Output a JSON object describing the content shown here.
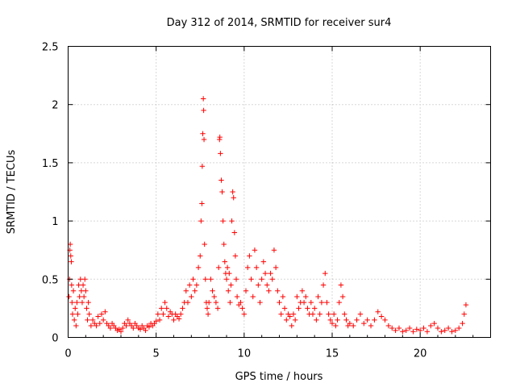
{
  "chart_data": {
    "type": "scatter",
    "title": "Day 312 of 2014, SRMTID for receiver sur4",
    "xlabel": "GPS time / hours",
    "ylabel": "SRMTID / TECUs",
    "xlim": [
      0,
      24
    ],
    "ylim": [
      0,
      2.5
    ],
    "grid": true,
    "marker": "+",
    "color": "#ff0000",
    "x_ticks": [
      0,
      5,
      10,
      15,
      20
    ],
    "x_tick_labels": [
      "0",
      "5",
      "10",
      "15",
      "20"
    ],
    "y_ticks": [
      0,
      0.5,
      1,
      1.5,
      2,
      2.5
    ],
    "y_tick_labels": [
      "0",
      "0.5",
      "1",
      "1.5",
      "2",
      "2.5"
    ],
    "series": [
      {
        "name": "sur4",
        "points": [
          [
            0.05,
            0.35
          ],
          [
            0.08,
            0.5
          ],
          [
            0.1,
            0.75
          ],
          [
            0.12,
            0.8
          ],
          [
            0.15,
            0.7
          ],
          [
            0.18,
            0.65
          ],
          [
            0.2,
            0.45
          ],
          [
            0.22,
            0.3
          ],
          [
            0.25,
            0.2
          ],
          [
            0.3,
            0.4
          ],
          [
            0.35,
            0.15
          ],
          [
            0.4,
            0.25
          ],
          [
            0.45,
            0.1
          ],
          [
            0.5,
            0.3
          ],
          [
            0.55,
            0.2
          ],
          [
            0.6,
            0.45
          ],
          [
            0.65,
            0.35
          ],
          [
            0.7,
            0.5
          ],
          [
            0.75,
            0.4
          ],
          [
            0.8,
            0.3
          ],
          [
            0.85,
            0.45
          ],
          [
            0.9,
            0.35
          ],
          [
            0.95,
            0.5
          ],
          [
            1.0,
            0.4
          ],
          [
            1.05,
            0.25
          ],
          [
            1.1,
            0.15
          ],
          [
            1.15,
            0.3
          ],
          [
            1.2,
            0.2
          ],
          [
            1.3,
            0.1
          ],
          [
            1.4,
            0.15
          ],
          [
            1.5,
            0.12
          ],
          [
            1.6,
            0.1
          ],
          [
            1.7,
            0.18
          ],
          [
            1.8,
            0.12
          ],
          [
            1.9,
            0.2
          ],
          [
            2.0,
            0.15
          ],
          [
            2.1,
            0.22
          ],
          [
            2.2,
            0.12
          ],
          [
            2.3,
            0.1
          ],
          [
            2.4,
            0.08
          ],
          [
            2.5,
            0.12
          ],
          [
            2.6,
            0.1
          ],
          [
            2.7,
            0.08
          ],
          [
            2.8,
            0.06
          ],
          [
            2.9,
            0.07
          ],
          [
            3.0,
            0.05
          ],
          [
            3.1,
            0.08
          ],
          [
            3.2,
            0.12
          ],
          [
            3.3,
            0.1
          ],
          [
            3.4,
            0.15
          ],
          [
            3.5,
            0.12
          ],
          [
            3.6,
            0.1
          ],
          [
            3.7,
            0.08
          ],
          [
            3.8,
            0.12
          ],
          [
            3.9,
            0.1
          ],
          [
            4.0,
            0.08
          ],
          [
            4.1,
            0.07
          ],
          [
            4.2,
            0.1
          ],
          [
            4.3,
            0.08
          ],
          [
            4.4,
            0.06
          ],
          [
            4.5,
            0.1
          ],
          [
            4.6,
            0.09
          ],
          [
            4.7,
            0.12
          ],
          [
            4.8,
            0.1
          ],
          [
            4.9,
            0.12
          ],
          [
            5.0,
            0.14
          ],
          [
            5.1,
            0.2
          ],
          [
            5.2,
            0.15
          ],
          [
            5.3,
            0.25
          ],
          [
            5.4,
            0.2
          ],
          [
            5.5,
            0.3
          ],
          [
            5.6,
            0.25
          ],
          [
            5.7,
            0.18
          ],
          [
            5.8,
            0.22
          ],
          [
            5.9,
            0.2
          ],
          [
            6.0,
            0.15
          ],
          [
            6.1,
            0.2
          ],
          [
            6.2,
            0.18
          ],
          [
            6.3,
            0.16
          ],
          [
            6.4,
            0.2
          ],
          [
            6.5,
            0.25
          ],
          [
            6.6,
            0.3
          ],
          [
            6.7,
            0.4
          ],
          [
            6.8,
            0.3
          ],
          [
            6.9,
            0.45
          ],
          [
            7.0,
            0.35
          ],
          [
            7.1,
            0.5
          ],
          [
            7.2,
            0.4
          ],
          [
            7.3,
            0.45
          ],
          [
            7.4,
            0.6
          ],
          [
            7.5,
            0.7
          ],
          [
            7.55,
            1.0
          ],
          [
            7.6,
            1.15
          ],
          [
            7.62,
            1.47
          ],
          [
            7.65,
            1.75
          ],
          [
            7.68,
            2.05
          ],
          [
            7.7,
            1.95
          ],
          [
            7.72,
            1.7
          ],
          [
            7.75,
            0.8
          ],
          [
            7.8,
            0.5
          ],
          [
            7.85,
            0.3
          ],
          [
            7.9,
            0.25
          ],
          [
            7.95,
            0.2
          ],
          [
            8.0,
            0.3
          ],
          [
            8.1,
            0.5
          ],
          [
            8.2,
            0.4
          ],
          [
            8.3,
            0.35
          ],
          [
            8.4,
            0.3
          ],
          [
            8.5,
            0.25
          ],
          [
            8.55,
            0.6
          ],
          [
            8.6,
            1.7
          ],
          [
            8.62,
            1.72
          ],
          [
            8.65,
            1.58
          ],
          [
            8.7,
            1.35
          ],
          [
            8.75,
            1.25
          ],
          [
            8.8,
            1.0
          ],
          [
            8.85,
            0.8
          ],
          [
            8.9,
            0.65
          ],
          [
            8.95,
            0.55
          ],
          [
            9.0,
            0.5
          ],
          [
            9.05,
            0.6
          ],
          [
            9.1,
            0.4
          ],
          [
            9.15,
            0.55
          ],
          [
            9.2,
            0.3
          ],
          [
            9.25,
            0.45
          ],
          [
            9.3,
            1.0
          ],
          [
            9.35,
            1.25
          ],
          [
            9.4,
            1.2
          ],
          [
            9.45,
            0.9
          ],
          [
            9.5,
            0.7
          ],
          [
            9.55,
            0.5
          ],
          [
            9.6,
            0.35
          ],
          [
            9.7,
            0.28
          ],
          [
            9.8,
            0.3
          ],
          [
            9.9,
            0.25
          ],
          [
            10.0,
            0.2
          ],
          [
            10.1,
            0.4
          ],
          [
            10.2,
            0.6
          ],
          [
            10.3,
            0.7
          ],
          [
            10.4,
            0.5
          ],
          [
            10.5,
            0.35
          ],
          [
            10.6,
            0.75
          ],
          [
            10.7,
            0.6
          ],
          [
            10.8,
            0.45
          ],
          [
            10.9,
            0.3
          ],
          [
            11.0,
            0.5
          ],
          [
            11.1,
            0.65
          ],
          [
            11.2,
            0.55
          ],
          [
            11.3,
            0.45
          ],
          [
            11.4,
            0.4
          ],
          [
            11.5,
            0.55
          ],
          [
            11.6,
            0.5
          ],
          [
            11.7,
            0.75
          ],
          [
            11.8,
            0.6
          ],
          [
            11.9,
            0.4
          ],
          [
            12.0,
            0.3
          ],
          [
            12.1,
            0.2
          ],
          [
            12.2,
            0.35
          ],
          [
            12.3,
            0.25
          ],
          [
            12.4,
            0.15
          ],
          [
            12.5,
            0.2
          ],
          [
            12.6,
            0.18
          ],
          [
            12.7,
            0.1
          ],
          [
            12.8,
            0.2
          ],
          [
            12.9,
            0.15
          ],
          [
            13.0,
            0.35
          ],
          [
            13.1,
            0.25
          ],
          [
            13.2,
            0.3
          ],
          [
            13.3,
            0.4
          ],
          [
            13.4,
            0.3
          ],
          [
            13.5,
            0.35
          ],
          [
            13.6,
            0.25
          ],
          [
            13.7,
            0.2
          ],
          [
            13.8,
            0.3
          ],
          [
            13.9,
            0.2
          ],
          [
            14.0,
            0.25
          ],
          [
            14.1,
            0.15
          ],
          [
            14.2,
            0.35
          ],
          [
            14.3,
            0.2
          ],
          [
            14.4,
            0.3
          ],
          [
            14.5,
            0.45
          ],
          [
            14.6,
            0.55
          ],
          [
            14.7,
            0.3
          ],
          [
            14.8,
            0.2
          ],
          [
            14.9,
            0.15
          ],
          [
            15.0,
            0.12
          ],
          [
            15.1,
            0.2
          ],
          [
            15.2,
            0.1
          ],
          [
            15.3,
            0.15
          ],
          [
            15.4,
            0.3
          ],
          [
            15.5,
            0.45
          ],
          [
            15.6,
            0.35
          ],
          [
            15.7,
            0.2
          ],
          [
            15.8,
            0.15
          ],
          [
            15.9,
            0.1
          ],
          [
            16.0,
            0.12
          ],
          [
            16.2,
            0.1
          ],
          [
            16.4,
            0.15
          ],
          [
            16.6,
            0.2
          ],
          [
            16.8,
            0.12
          ],
          [
            17.0,
            0.15
          ],
          [
            17.2,
            0.1
          ],
          [
            17.4,
            0.15
          ],
          [
            17.6,
            0.22
          ],
          [
            17.8,
            0.18
          ],
          [
            18.0,
            0.15
          ],
          [
            18.2,
            0.1
          ],
          [
            18.4,
            0.08
          ],
          [
            18.6,
            0.06
          ],
          [
            18.8,
            0.08
          ],
          [
            19.0,
            0.05
          ],
          [
            19.2,
            0.06
          ],
          [
            19.4,
            0.08
          ],
          [
            19.6,
            0.05
          ],
          [
            19.8,
            0.07
          ],
          [
            20.0,
            0.06
          ],
          [
            20.2,
            0.08
          ],
          [
            20.4,
            0.05
          ],
          [
            20.6,
            0.1
          ],
          [
            20.8,
            0.12
          ],
          [
            21.0,
            0.08
          ],
          [
            21.2,
            0.05
          ],
          [
            21.4,
            0.06
          ],
          [
            21.6,
            0.08
          ],
          [
            21.8,
            0.05
          ],
          [
            22.0,
            0.06
          ],
          [
            22.2,
            0.08
          ],
          [
            22.4,
            0.12
          ],
          [
            22.5,
            0.2
          ],
          [
            22.6,
            0.28
          ]
        ]
      }
    ]
  }
}
